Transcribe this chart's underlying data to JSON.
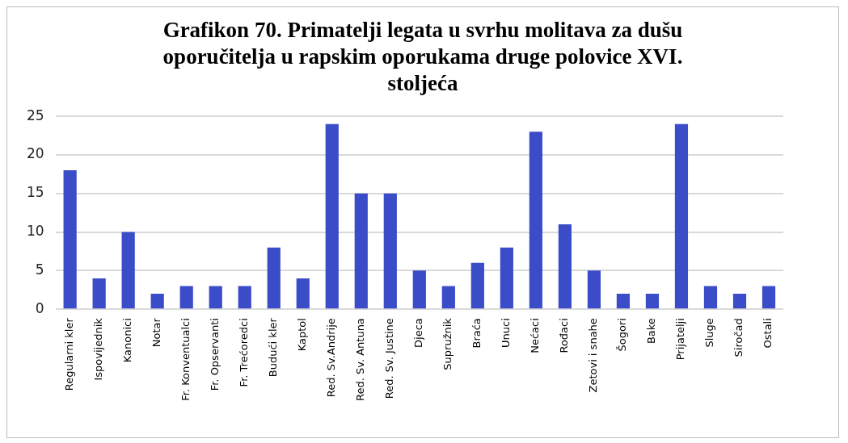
{
  "chart_data": {
    "type": "bar",
    "title": "Grafikon 70.  Primatelji legata u svrhu molitava za dušu oporučitelja u rapskim oporukama druge polovice XVI. stoljeća",
    "categories": [
      "Regularni kler",
      "Ispovijednik",
      "Kanonici",
      "Notar",
      "Fr. Konventualci",
      "Fr. Opservanti",
      "Fr. Trećoredci",
      "Budući kler",
      "Kaptol",
      "Red. Sv.Andrije",
      "Red. Sv. Antuna",
      "Red. Sv. Justine",
      "Djeca",
      "Supružnik",
      "Braća",
      "Unuci",
      "Nećaci",
      "Rođaci",
      "Zetovi i snahe",
      "Šogori",
      "Bake",
      "Prijatelji",
      "Sluge",
      "Siročad",
      "Ostali"
    ],
    "values": [
      18,
      4,
      10,
      2,
      3,
      3,
      3,
      8,
      4,
      24,
      15,
      15,
      5,
      3,
      6,
      8,
      23,
      11,
      5,
      2,
      2,
      24,
      3,
      2,
      3
    ],
    "color": "#3b4cc8",
    "ylim": [
      0,
      25
    ],
    "yticks": [
      0,
      5,
      10,
      15,
      20,
      25
    ],
    "grid": "y",
    "legend": false
  }
}
